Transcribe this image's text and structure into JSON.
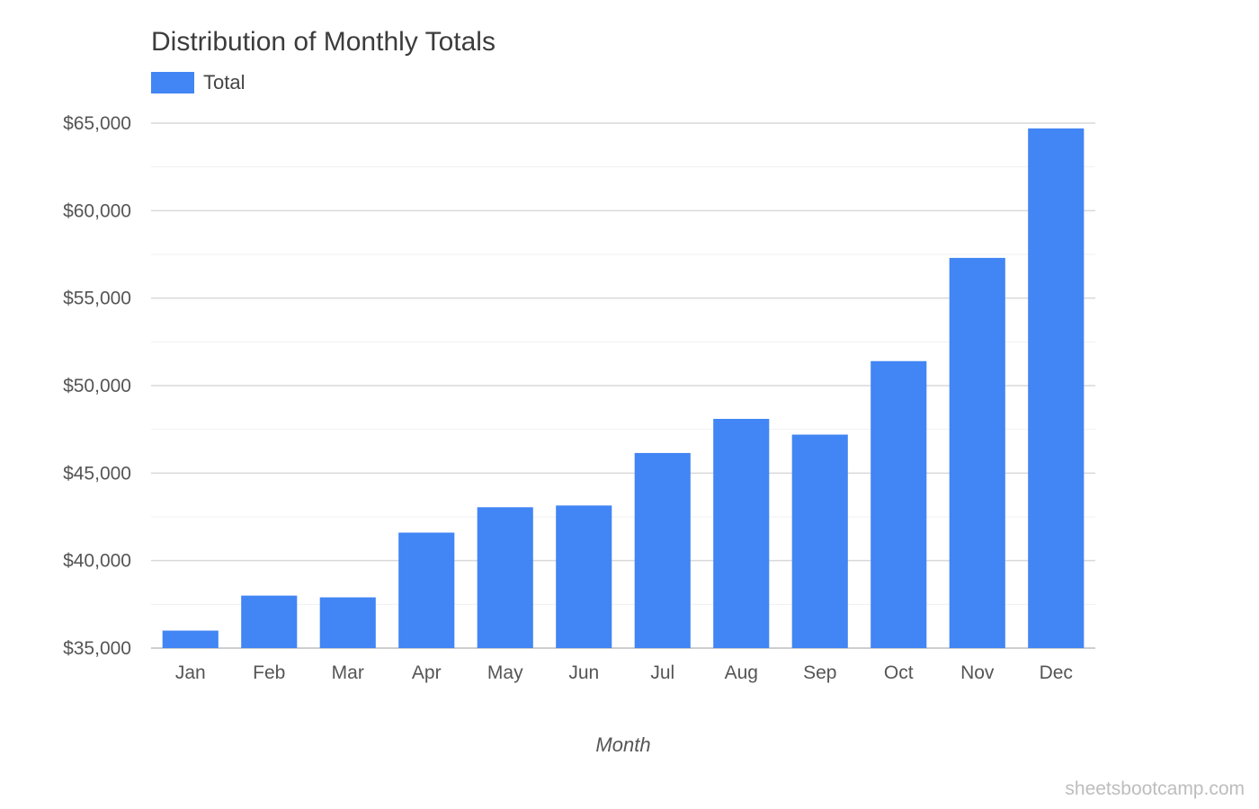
{
  "chart_data": {
    "type": "bar",
    "title": "Distribution of Monthly Totals",
    "xlabel": "Month",
    "ylabel": "",
    "categories": [
      "Jan",
      "Feb",
      "Mar",
      "Apr",
      "May",
      "Jun",
      "Jul",
      "Aug",
      "Sep",
      "Oct",
      "Nov",
      "Dec"
    ],
    "series": [
      {
        "name": "Total",
        "color": "#4285f4",
        "values": [
          36000,
          38000,
          37900,
          41600,
          43050,
          43150,
          46150,
          48100,
          47200,
          51400,
          57300,
          64700
        ]
      }
    ],
    "ylim": [
      35000,
      65000
    ],
    "y_ticks": [
      {
        "value": 35000,
        "label": "$35,000"
      },
      {
        "value": 40000,
        "label": "$40,000"
      },
      {
        "value": 45000,
        "label": "$45,000"
      },
      {
        "value": 50000,
        "label": "$50,000"
      },
      {
        "value": 55000,
        "label": "$55,000"
      },
      {
        "value": 60000,
        "label": "$60,000"
      },
      {
        "value": 65000,
        "label": "$65,000"
      }
    ],
    "minor_grid_step": 2500,
    "grid": true,
    "legend_position": "top-left"
  },
  "watermark": "sheetsbootcamp.com"
}
